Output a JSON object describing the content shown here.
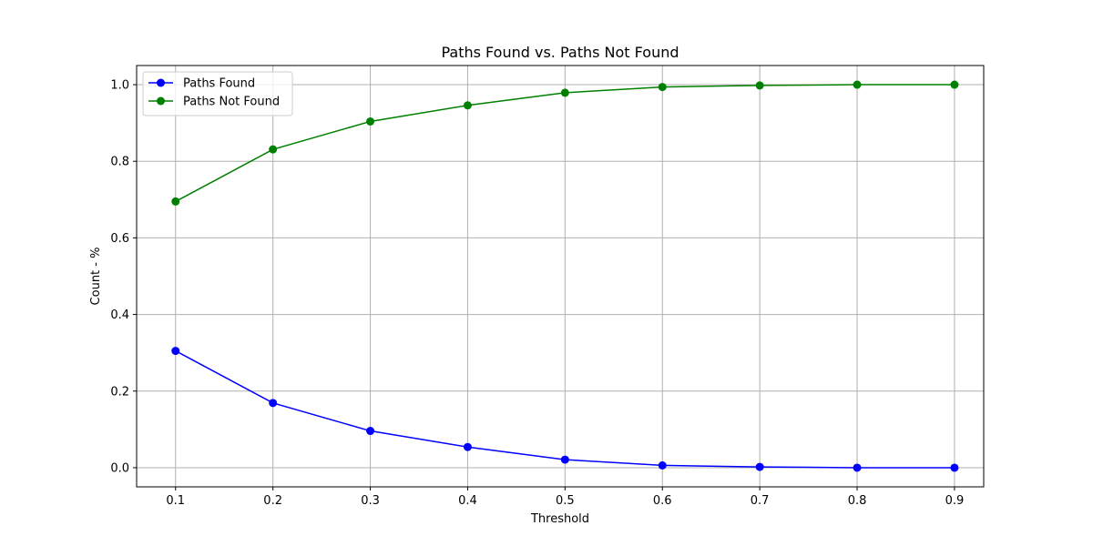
{
  "chart_data": {
    "type": "line",
    "title": "Paths Found vs. Paths Not Found",
    "xlabel": "Threshold",
    "ylabel": "Count - %",
    "x": [
      0.1,
      0.2,
      0.3,
      0.4,
      0.5,
      0.6,
      0.7,
      0.8,
      0.9
    ],
    "x_tick_labels": [
      "0.1",
      "0.2",
      "0.3",
      "0.4",
      "0.5",
      "0.6",
      "0.7",
      "0.8",
      "0.9"
    ],
    "y_ticks": [
      0.0,
      0.2,
      0.4,
      0.6,
      0.8,
      1.0
    ],
    "y_tick_labels": [
      "0.0",
      "0.2",
      "0.4",
      "0.6",
      "0.8",
      "1.0"
    ],
    "xlim": [
      0.06,
      0.93
    ],
    "ylim": [
      -0.05,
      1.05
    ],
    "grid": true,
    "legend_position": "top-left",
    "series": [
      {
        "name": "Paths Found",
        "color": "#0000ff",
        "marker": "circle",
        "values": [
          0.305,
          0.169,
          0.096,
          0.054,
          0.021,
          0.006,
          0.002,
          0.0,
          0.0
        ]
      },
      {
        "name": "Paths Not Found",
        "color": "#008000",
        "marker": "circle",
        "values": [
          0.695,
          0.831,
          0.904,
          0.946,
          0.979,
          0.994,
          0.998,
          1.0,
          1.0
        ]
      }
    ]
  }
}
